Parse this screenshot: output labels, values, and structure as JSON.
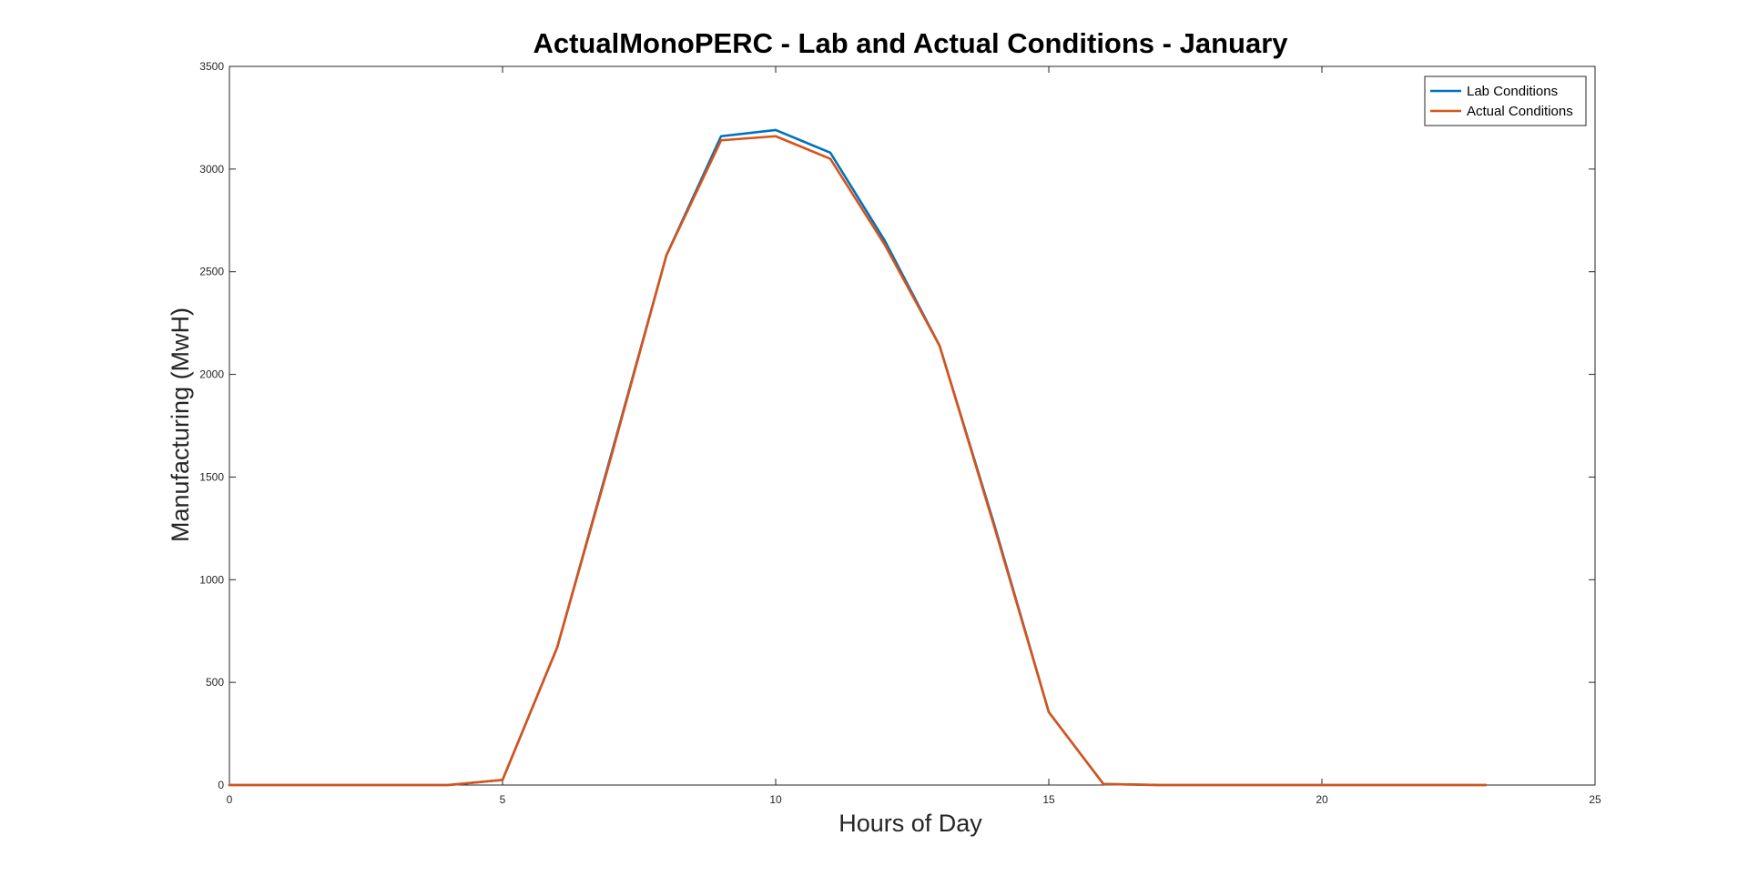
{
  "chart_data": {
    "type": "line",
    "title": "ActualMonoPERC - Lab and Actual Conditions - January",
    "xlabel": "Hours of Day",
    "ylabel": "Manufacturing (MwH)",
    "xlim": [
      0,
      25
    ],
    "ylim": [
      0,
      3500
    ],
    "xticks": [
      0,
      5,
      10,
      15,
      20,
      25
    ],
    "yticks": [
      0,
      500,
      1000,
      1500,
      2000,
      2500,
      3000,
      3500
    ],
    "grid": false,
    "legend_position": "top-right",
    "x": [
      0,
      1,
      2,
      3,
      4,
      5,
      6,
      7,
      8,
      9,
      10,
      11,
      12,
      13,
      14,
      15,
      16,
      17,
      18,
      19,
      20,
      21,
      22,
      23
    ],
    "series": [
      {
        "name": "Lab Conditions",
        "color": "#0072BD",
        "values": [
          0,
          0,
          0,
          0,
          0,
          25,
          670,
          1620,
          2580,
          3160,
          3190,
          3080,
          2650,
          2140,
          1270,
          355,
          5,
          0,
          0,
          0,
          0,
          0,
          0,
          0
        ]
      },
      {
        "name": "Actual Conditions",
        "color": "#D95319",
        "values": [
          0,
          0,
          0,
          0,
          0,
          25,
          670,
          1610,
          2580,
          3140,
          3160,
          3050,
          2630,
          2140,
          1260,
          355,
          5,
          0,
          0,
          0,
          0,
          0,
          0,
          0
        ]
      }
    ]
  }
}
